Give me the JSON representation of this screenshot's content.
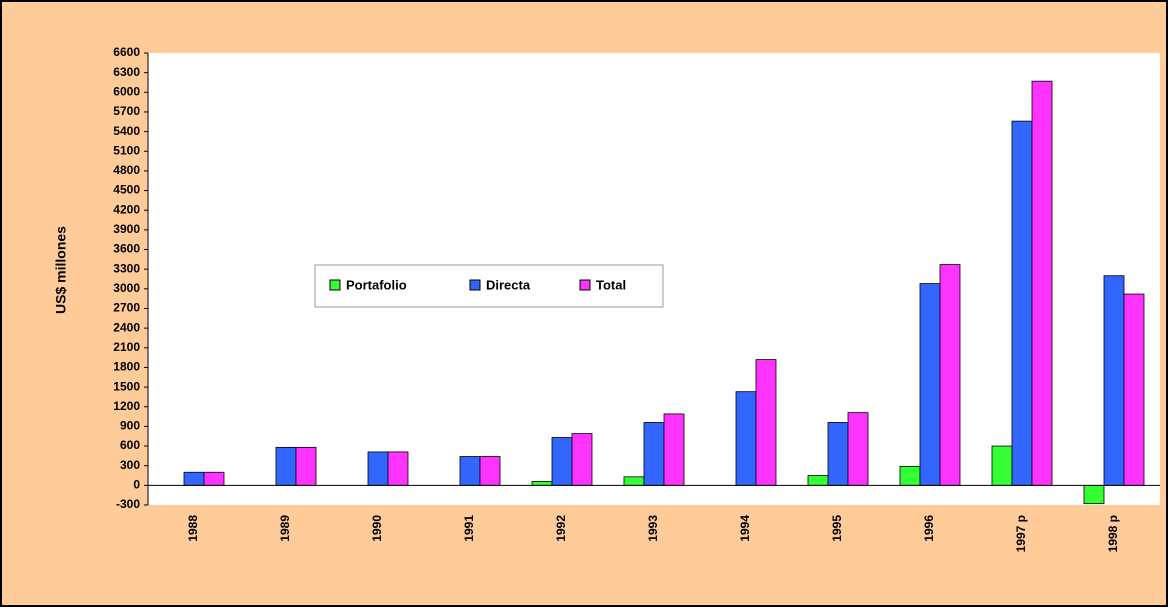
{
  "chart_data": {
    "type": "bar",
    "y_label": "US$ millones",
    "categories": [
      "1988",
      "1989",
      "1990",
      "1991",
      "1992",
      "1993",
      "1994",
      "1995",
      "1996",
      "1997 p",
      "1998 p"
    ],
    "series": [
      {
        "name": "Portafolio",
        "color": "#33ff33",
        "values": [
          0,
          0,
          0,
          0,
          60,
          130,
          0,
          150,
          290,
          600,
          -280
        ]
      },
      {
        "name": "Directa",
        "color": "#3366ff",
        "values": [
          200,
          580,
          510,
          440,
          730,
          960,
          1430,
          960,
          3080,
          5560,
          3200
        ]
      },
      {
        "name": "Total",
        "color": "#ff33ff",
        "values": [
          200,
          580,
          510,
          440,
          790,
          1090,
          1920,
          1110,
          3370,
          6170,
          2920
        ]
      }
    ],
    "ylim": [
      -300,
      6600
    ],
    "yticks": [
      -300,
      0,
      300,
      600,
      900,
      1200,
      1500,
      1800,
      2100,
      2400,
      2700,
      3000,
      3300,
      3600,
      3900,
      4200,
      4500,
      4800,
      5100,
      5400,
      5700,
      6000,
      6300,
      6600
    ],
    "grid": false
  }
}
